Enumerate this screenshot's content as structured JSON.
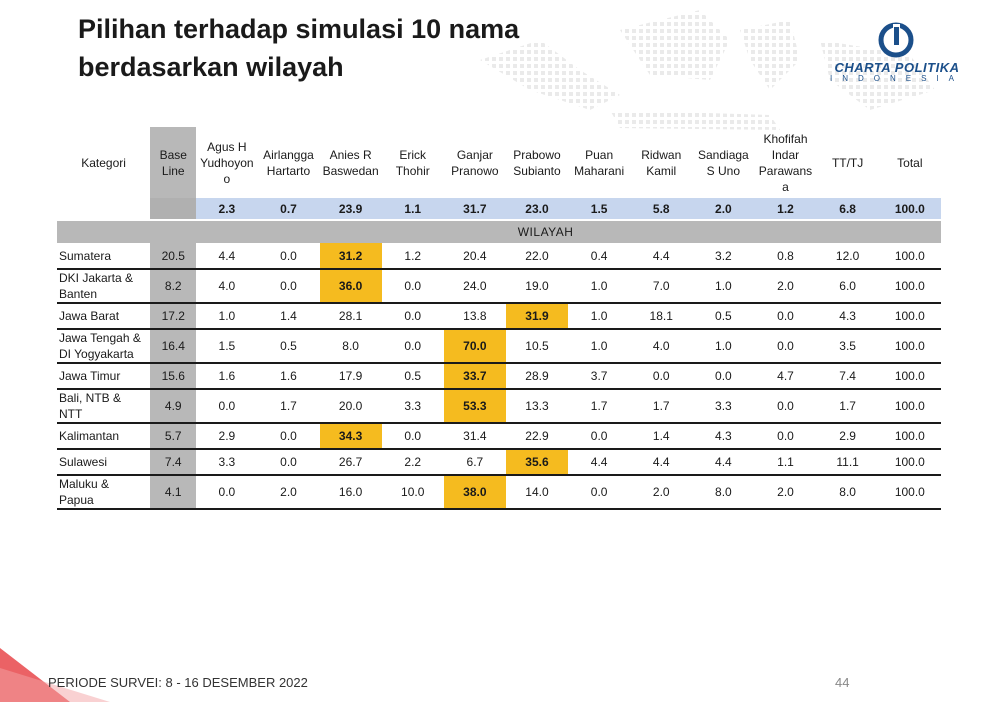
{
  "title": {
    "line1": "Pilihan terhadap simulasi 10 nama",
    "line2": "berdasarkan wilayah"
  },
  "logo": {
    "name": "CHARTA POLITIKA",
    "sub": "INDONESIA"
  },
  "table": {
    "header": {
      "kategori": "Kategori",
      "base": [
        "Base",
        "Line"
      ],
      "candidates": [
        [
          "Agus H",
          "Yudhoyon",
          "o"
        ],
        [
          "Airlangga",
          "Hartarto"
        ],
        [
          "Anies R",
          "Baswedan"
        ],
        [
          "Erick",
          "Thohir"
        ],
        [
          "Ganjar",
          "Pranowo"
        ],
        [
          "Prabowo",
          "Subianto"
        ],
        [
          "Puan",
          "Maharani"
        ],
        [
          "Ridwan",
          "Kamil"
        ],
        [
          "Sandiaga",
          "S Uno"
        ],
        [
          "Khofifah",
          "Indar",
          "Parawans",
          "a"
        ],
        [
          "TT/TJ"
        ],
        [
          "Total"
        ]
      ]
    },
    "totals": [
      "2.3",
      "0.7",
      "23.9",
      "1.1",
      "31.7",
      "23.0",
      "1.5",
      "5.8",
      "2.0",
      "1.2",
      "6.8",
      "100.0"
    ],
    "section_label": "WILAYAH",
    "rows": [
      {
        "region": [
          "Sumatera"
        ],
        "base": "20.5",
        "values": [
          "4.4",
          "0.0",
          "31.2",
          "1.2",
          "20.4",
          "22.0",
          "0.4",
          "4.4",
          "3.2",
          "0.8",
          "12.0",
          "100.0"
        ],
        "hl": 2
      },
      {
        "region": [
          "DKI Jakarta &",
          "Banten"
        ],
        "base": "8.2",
        "values": [
          "4.0",
          "0.0",
          "36.0",
          "0.0",
          "24.0",
          "19.0",
          "1.0",
          "7.0",
          "1.0",
          "2.0",
          "6.0",
          "100.0"
        ],
        "hl": 2
      },
      {
        "region": [
          "Jawa Barat"
        ],
        "base": "17.2",
        "values": [
          "1.0",
          "1.4",
          "28.1",
          "0.0",
          "13.8",
          "31.9",
          "1.0",
          "18.1",
          "0.5",
          "0.0",
          "4.3",
          "100.0"
        ],
        "hl": 5
      },
      {
        "region": [
          "Jawa Tengah &",
          "DI Yogyakarta"
        ],
        "base": "16.4",
        "values": [
          "1.5",
          "0.5",
          "8.0",
          "0.0",
          "70.0",
          "10.5",
          "1.0",
          "4.0",
          "1.0",
          "0.0",
          "3.5",
          "100.0"
        ],
        "hl": 4
      },
      {
        "region": [
          "Jawa Timur"
        ],
        "base": "15.6",
        "values": [
          "1.6",
          "1.6",
          "17.9",
          "0.5",
          "33.7",
          "28.9",
          "3.7",
          "0.0",
          "0.0",
          "4.7",
          "7.4",
          "100.0"
        ],
        "hl": 4
      },
      {
        "region": [
          "Bali, NTB &",
          "NTT"
        ],
        "base": "4.9",
        "values": [
          "0.0",
          "1.7",
          "20.0",
          "3.3",
          "53.3",
          "13.3",
          "1.7",
          "1.7",
          "3.3",
          "0.0",
          "1.7",
          "100.0"
        ],
        "hl": 4
      },
      {
        "region": [
          "Kalimantan"
        ],
        "base": "5.7",
        "values": [
          "2.9",
          "0.0",
          "34.3",
          "0.0",
          "31.4",
          "22.9",
          "0.0",
          "1.4",
          "4.3",
          "0.0",
          "2.9",
          "100.0"
        ],
        "hl": 2
      },
      {
        "region": [
          "Sulawesi"
        ],
        "base": "7.4",
        "values": [
          "3.3",
          "0.0",
          "26.7",
          "2.2",
          "6.7",
          "35.6",
          "4.4",
          "4.4",
          "4.4",
          "1.1",
          "11.1",
          "100.0"
        ],
        "hl": 5
      },
      {
        "region": [
          "Maluku &",
          "Papua"
        ],
        "base": "4.1",
        "values": [
          "0.0",
          "2.0",
          "16.0",
          "10.0",
          "38.0",
          "14.0",
          "0.0",
          "2.0",
          "8.0",
          "2.0",
          "8.0",
          "100.0"
        ],
        "hl": 4
      }
    ]
  },
  "footer": {
    "period": "PERIODE SURVEI: 8 - 16 DESEMBER 2022",
    "page": "44"
  },
  "colors": {
    "highlight": "#f5bb1f",
    "totals_bg": "#c7d6ee",
    "base_col": "#b8b8b8",
    "logo_blue": "#1b4f8a"
  }
}
